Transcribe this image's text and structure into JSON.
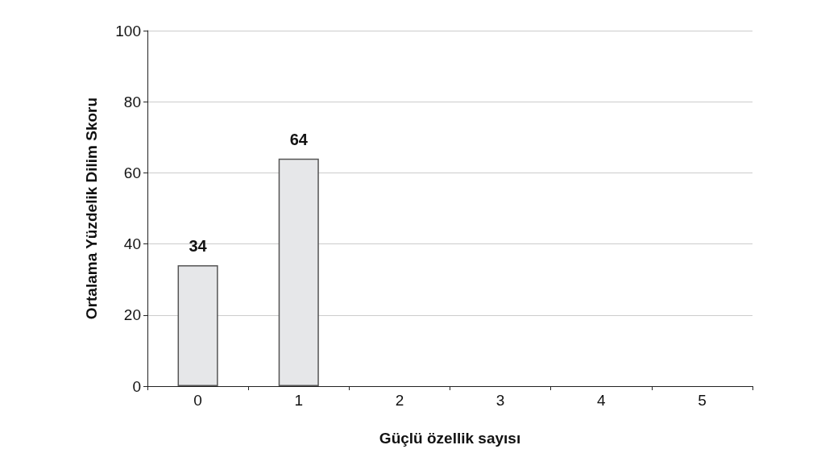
{
  "chart_data": {
    "type": "bar",
    "xlabel": "Güçlü özellik sayısı",
    "ylabel": "Ortalama Yüzdelik Dilim Skoru",
    "categories": [
      "0",
      "1",
      "2",
      "3",
      "4",
      "5"
    ],
    "values": [
      34,
      64,
      null,
      null,
      null,
      null
    ],
    "color": "#e6e7e9",
    "ylim": [
      0,
      100
    ],
    "yticks": [
      0,
      20,
      40,
      60,
      80,
      100
    ],
    "grid": "y",
    "data_labels": true
  }
}
